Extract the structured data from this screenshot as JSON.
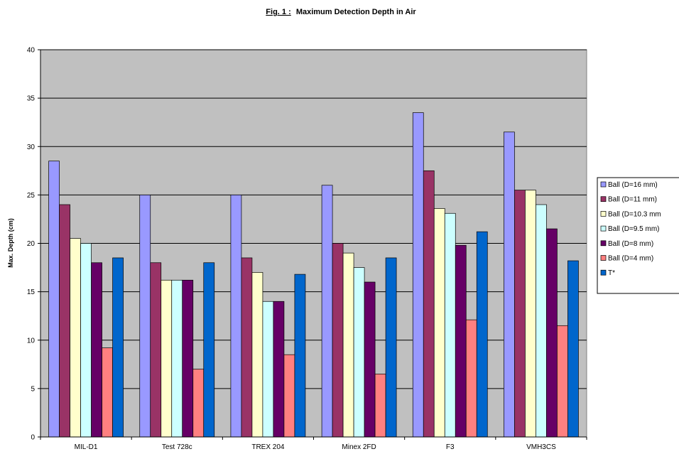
{
  "chart_data": {
    "type": "bar",
    "title_prefix": "Fig. 1 :",
    "title": "Maximum Detection Depth in Air",
    "xlabel": "",
    "ylabel": "Max. Depth (cm)",
    "ylim": [
      0,
      40
    ],
    "yticks": [
      "0",
      "5",
      "10",
      "15",
      "20",
      "25",
      "30",
      "35",
      "40"
    ],
    "grid": true,
    "legend_position": "right",
    "plot_background": "#c0c0c0",
    "categories": [
      "MIL-D1",
      "Test 728c",
      "TREX 204",
      "Minex 2FD",
      "F3",
      "VMH3CS"
    ],
    "series": [
      {
        "name": "Ball (D=16 mm)",
        "color": "#9999ff",
        "values": [
          28.5,
          25,
          25,
          26,
          33.5,
          31.5
        ]
      },
      {
        "name": "Ball (D=11 mm)",
        "color": "#993366",
        "values": [
          24,
          18,
          18.5,
          20,
          27.5,
          25.5
        ]
      },
      {
        "name": "Ball (D=10.3 mm",
        "color": "#ffffcc",
        "values": [
          20.5,
          16.2,
          17,
          19,
          23.6,
          25.5
        ]
      },
      {
        "name": "Ball (D=9.5 mm)",
        "color": "#ccffff",
        "values": [
          20,
          16.2,
          14,
          17.5,
          23.1,
          24
        ]
      },
      {
        "name": "Ball (D=8 mm)",
        "color": "#660066",
        "values": [
          18,
          16.2,
          14,
          16,
          19.8,
          21.5
        ]
      },
      {
        "name": "Ball (D=4 mm)",
        "color": "#ff8080",
        "values": [
          9.2,
          7,
          8.5,
          6.5,
          12.1,
          11.5
        ]
      },
      {
        "name": "T*",
        "color": "#0066cc",
        "values": [
          18.5,
          18,
          16.8,
          18.5,
          21.2,
          18.2
        ]
      }
    ]
  }
}
